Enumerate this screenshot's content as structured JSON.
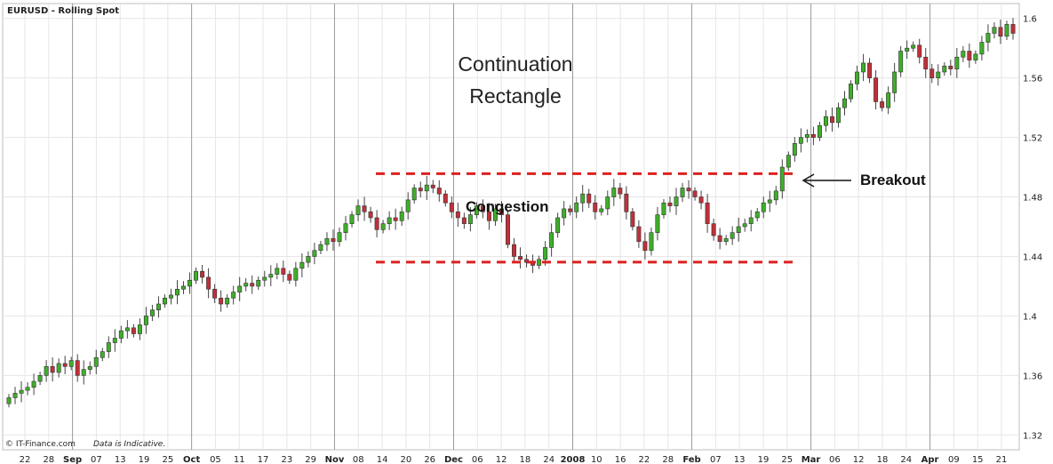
{
  "chart_data": {
    "type": "candlestick",
    "header": "EURUSD - Rolling Spot",
    "title": "Continuation Rectangle",
    "ylim": [
      1.31,
      1.61
    ],
    "y_ticks": [
      "1.6",
      "1.56",
      "1.52",
      "1.48",
      "1.44",
      "1.4",
      "1.36",
      "1.32"
    ],
    "x_labels": [
      "22",
      "28",
      "Sep",
      "07",
      "13",
      "19",
      "25",
      "Oct",
      "05",
      "11",
      "17",
      "23",
      "29",
      "Nov",
      "08",
      "14",
      "20",
      "26",
      "Dec",
      "06",
      "12",
      "18",
      "24",
      "2008",
      "10",
      "16",
      "22",
      "28",
      "Feb",
      "07",
      "13",
      "19",
      "25",
      "Mar",
      "06",
      "12",
      "18",
      "24",
      "Apr",
      "09",
      "15",
      "21"
    ],
    "month_separators": [
      "Sep",
      "Oct",
      "Nov",
      "Dec",
      "2008",
      "Feb",
      "Mar",
      "Apr"
    ],
    "closes": [
      1.345,
      1.348,
      1.35,
      1.352,
      1.356,
      1.36,
      1.366,
      1.362,
      1.368,
      1.366,
      1.37,
      1.36,
      1.364,
      1.366,
      1.372,
      1.376,
      1.382,
      1.385,
      1.39,
      1.392,
      1.388,
      1.394,
      1.4,
      1.404,
      1.408,
      1.412,
      1.414,
      1.418,
      1.42,
      1.424,
      1.43,
      1.426,
      1.418,
      1.412,
      1.408,
      1.412,
      1.416,
      1.42,
      1.422,
      1.42,
      1.424,
      1.426,
      1.428,
      1.432,
      1.428,
      1.424,
      1.432,
      1.436,
      1.44,
      1.444,
      1.448,
      1.452,
      1.45,
      1.456,
      1.462,
      1.468,
      1.474,
      1.47,
      1.466,
      1.458,
      1.462,
      1.466,
      1.464,
      1.47,
      1.478,
      1.486,
      1.484,
      1.488,
      1.486,
      1.482,
      1.476,
      1.47,
      1.466,
      1.462,
      1.468,
      1.474,
      1.47,
      1.464,
      1.472,
      1.468,
      1.448,
      1.44,
      1.438,
      1.436,
      1.434,
      1.438,
      1.446,
      1.456,
      1.466,
      1.472,
      1.47,
      1.476,
      1.482,
      1.476,
      1.47,
      1.472,
      1.48,
      1.486,
      1.482,
      1.47,
      1.46,
      1.45,
      1.444,
      1.456,
      1.468,
      1.476,
      1.474,
      1.48,
      1.486,
      1.484,
      1.48,
      1.476,
      1.462,
      1.454,
      1.45,
      1.452,
      1.456,
      1.46,
      1.462,
      1.466,
      1.47,
      1.476,
      1.478,
      1.484,
      1.5,
      1.508,
      1.516,
      1.52,
      1.522,
      1.52,
      1.528,
      1.534,
      1.53,
      1.54,
      1.546,
      1.556,
      1.564,
      1.57,
      1.56,
      1.544,
      1.54,
      1.55,
      1.564,
      1.578,
      1.58,
      1.582,
      1.574,
      1.566,
      1.56,
      1.564,
      1.568,
      1.566,
      1.574,
      1.578,
      1.572,
      1.576,
      1.584,
      1.59,
      1.594,
      1.588,
      1.596,
      1.59
    ],
    "congestion_range": [
      1.4362,
      1.4956
    ],
    "congestion_label": "Congestion",
    "breakout_label": "Breakout",
    "footer_left": "© IT-Finance.com",
    "footer_right": "Data is Indicative.",
    "colors": {
      "up": "#3fae29",
      "down": "#c0303a",
      "wick": "#444444",
      "rect": "#dd2020",
      "grid": "#e6e6e6",
      "separator": "#9a9a9a"
    }
  }
}
